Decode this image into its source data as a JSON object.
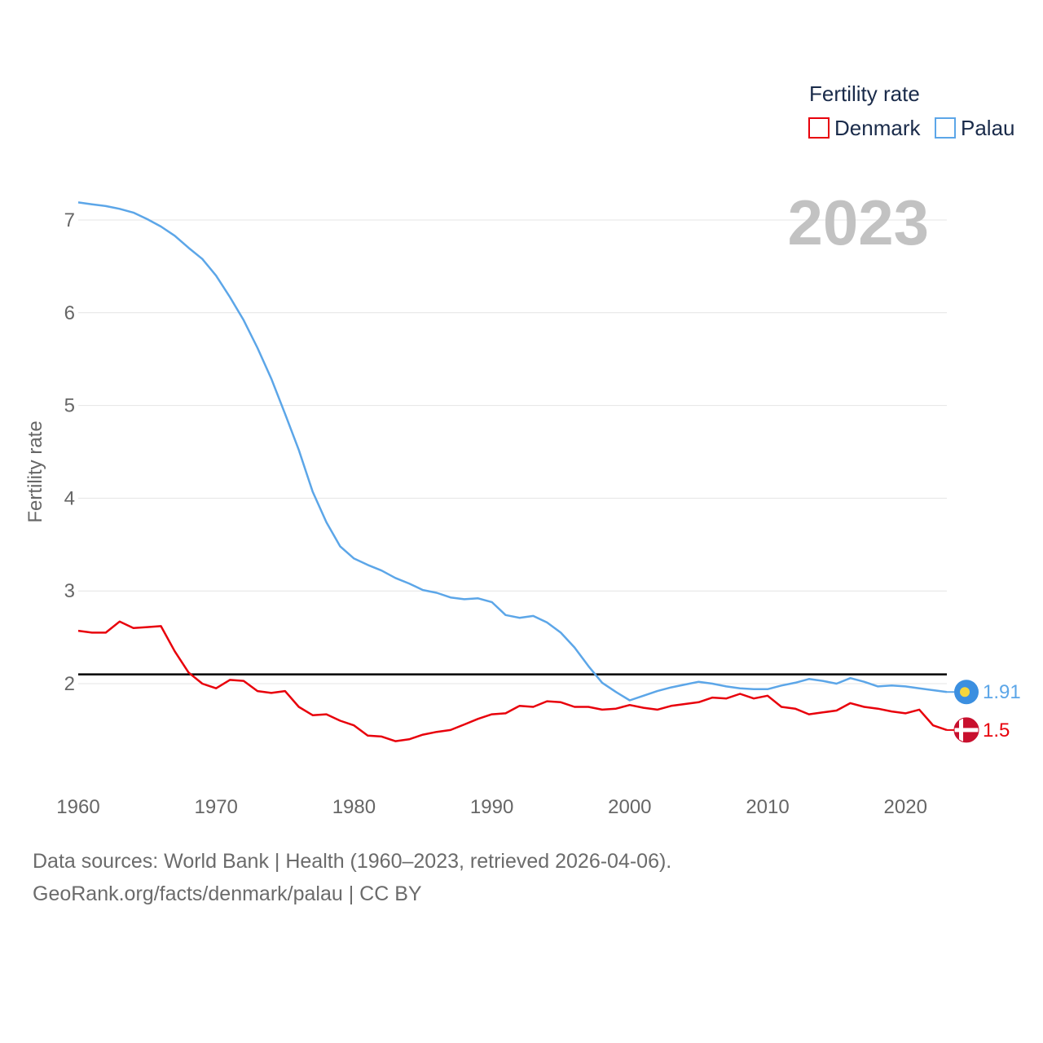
{
  "chart_data": {
    "type": "line",
    "legend_title": "Fertility rate",
    "ylabel": "Fertility rate",
    "xlim": [
      1960,
      2023
    ],
    "ylim": [
      1.0,
      7.5
    ],
    "x_ticks": [
      1960,
      1970,
      1980,
      1990,
      2000,
      2010,
      2020
    ],
    "y_ticks": [
      2,
      3,
      4,
      5,
      6,
      7
    ],
    "year_label": "2023",
    "reference_line": 2.1,
    "x": [
      1960,
      1961,
      1962,
      1963,
      1964,
      1965,
      1966,
      1967,
      1968,
      1969,
      1970,
      1971,
      1972,
      1973,
      1974,
      1975,
      1976,
      1977,
      1978,
      1979,
      1980,
      1981,
      1982,
      1983,
      1984,
      1985,
      1986,
      1987,
      1988,
      1989,
      1990,
      1991,
      1992,
      1993,
      1994,
      1995,
      1996,
      1997,
      1998,
      1999,
      2000,
      2001,
      2002,
      2003,
      2004,
      2005,
      2006,
      2007,
      2008,
      2009,
      2010,
      2011,
      2012,
      2013,
      2014,
      2015,
      2016,
      2017,
      2018,
      2019,
      2020,
      2021,
      2022,
      2023
    ],
    "series": [
      {
        "name": "Denmark",
        "color": "#e8000b",
        "end_label": "1.5",
        "flag": "denmark-flag",
        "values": [
          2.57,
          2.55,
          2.55,
          2.67,
          2.6,
          2.61,
          2.62,
          2.35,
          2.12,
          2.0,
          1.95,
          2.04,
          2.03,
          1.92,
          1.9,
          1.92,
          1.75,
          1.66,
          1.67,
          1.6,
          1.55,
          1.44,
          1.43,
          1.38,
          1.4,
          1.45,
          1.48,
          1.5,
          1.56,
          1.62,
          1.67,
          1.68,
          1.76,
          1.75,
          1.81,
          1.8,
          1.75,
          1.75,
          1.72,
          1.73,
          1.77,
          1.74,
          1.72,
          1.76,
          1.78,
          1.8,
          1.85,
          1.84,
          1.89,
          1.84,
          1.87,
          1.75,
          1.73,
          1.67,
          1.69,
          1.71,
          1.79,
          1.75,
          1.73,
          1.7,
          1.68,
          1.72,
          1.55,
          1.5
        ]
      },
      {
        "name": "Palau",
        "color": "#5ca6e8",
        "end_label": "1.91",
        "flag": "palau-flag",
        "values": [
          7.19,
          7.17,
          7.15,
          7.12,
          7.08,
          7.01,
          6.93,
          6.83,
          6.7,
          6.58,
          6.4,
          6.17,
          5.92,
          5.62,
          5.29,
          4.91,
          4.52,
          4.07,
          3.74,
          3.48,
          3.35,
          3.28,
          3.22,
          3.14,
          3.08,
          3.01,
          2.98,
          2.93,
          2.91,
          2.92,
          2.88,
          2.74,
          2.71,
          2.73,
          2.66,
          2.55,
          2.39,
          2.19,
          2.01,
          1.91,
          1.82,
          1.87,
          1.92,
          1.96,
          1.99,
          2.02,
          2.0,
          1.97,
          1.95,
          1.94,
          1.94,
          1.98,
          2.01,
          2.05,
          2.03,
          2.0,
          2.06,
          2.02,
          1.97,
          1.98,
          1.97,
          1.95,
          1.93,
          1.91
        ]
      }
    ]
  },
  "footer": {
    "source": "Data sources: World Bank | Health (1960–2023, retrieved 2026-04-06).",
    "link": "GeoRank.org/facts/denmark/palau | CC BY"
  }
}
